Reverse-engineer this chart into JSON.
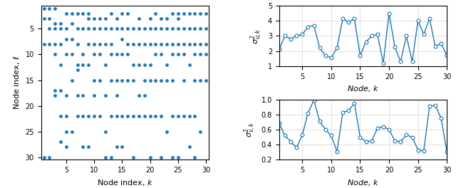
{
  "scatter_x": [
    1,
    1,
    1,
    1,
    2,
    2,
    2,
    2,
    2,
    3,
    3,
    3,
    3,
    3,
    3,
    3,
    4,
    4,
    4,
    4,
    4,
    4,
    4,
    5,
    5,
    5,
    5,
    5,
    5,
    5,
    5,
    6,
    6,
    6,
    6,
    6,
    6,
    7,
    7,
    7,
    7,
    7,
    7,
    7,
    8,
    8,
    8,
    8,
    8,
    8,
    8,
    9,
    9,
    9,
    9,
    9,
    9,
    9,
    10,
    10,
    10,
    10,
    10,
    10,
    10,
    11,
    11,
    11,
    11,
    11,
    11,
    12,
    12,
    12,
    12,
    12,
    12,
    12,
    13,
    13,
    13,
    13,
    13,
    13,
    13,
    14,
    14,
    14,
    14,
    14,
    14,
    14,
    15,
    15,
    15,
    15,
    15,
    15,
    15,
    16,
    16,
    16,
    16,
    16,
    16,
    17,
    17,
    17,
    17,
    17,
    17,
    18,
    18,
    18,
    18,
    18,
    18,
    19,
    19,
    19,
    19,
    19,
    19,
    20,
    20,
    20,
    20,
    20,
    20,
    20,
    21,
    21,
    21,
    21,
    21,
    21,
    22,
    22,
    22,
    22,
    22,
    22,
    22,
    23,
    23,
    23,
    23,
    23,
    23,
    24,
    24,
    24,
    24,
    24,
    24,
    24,
    25,
    25,
    25,
    25,
    25,
    25,
    25,
    26,
    26,
    26,
    26,
    26,
    26,
    27,
    27,
    27,
    27,
    27,
    27,
    28,
    28,
    28,
    28,
    28,
    28,
    28,
    29,
    29,
    29,
    29,
    29,
    29,
    30,
    30,
    30,
    30,
    30
  ],
  "scatter_y": [
    1,
    3,
    8,
    30,
    1,
    3,
    5,
    8,
    30,
    1,
    4,
    5,
    8,
    10,
    17,
    18,
    4,
    5,
    8,
    12,
    17,
    22,
    27,
    2,
    5,
    7,
    10,
    18,
    22,
    25,
    28,
    2,
    4,
    7,
    10,
    15,
    25,
    2,
    5,
    8,
    12,
    13,
    18,
    22,
    2,
    5,
    10,
    12,
    18,
    22,
    28,
    2,
    3,
    5,
    8,
    12,
    22,
    28,
    3,
    5,
    8,
    10,
    15,
    18,
    22,
    3,
    5,
    8,
    10,
    15,
    22,
    3,
    5,
    8,
    12,
    18,
    25,
    30,
    2,
    5,
    8,
    10,
    15,
    22,
    30,
    3,
    5,
    10,
    15,
    18,
    22,
    28,
    2,
    5,
    7,
    10,
    15,
    22,
    28,
    2,
    5,
    8,
    10,
    15,
    22,
    5,
    8,
    12,
    15,
    22,
    30,
    3,
    5,
    8,
    12,
    18,
    22,
    5,
    8,
    12,
    15,
    18,
    22,
    3,
    5,
    8,
    12,
    15,
    22,
    30,
    2,
    5,
    8,
    10,
    15,
    22,
    3,
    5,
    8,
    10,
    15,
    22,
    30,
    3,
    5,
    8,
    12,
    15,
    25,
    2,
    5,
    8,
    10,
    15,
    22,
    30,
    2,
    3,
    5,
    8,
    10,
    22,
    30,
    2,
    5,
    8,
    10,
    15,
    22,
    2,
    5,
    8,
    12,
    22,
    28,
    2,
    5,
    8,
    10,
    15,
    22,
    30,
    2,
    5,
    8,
    10,
    15,
    25,
    2,
    5,
    8,
    10,
    15
  ],
  "line1_x": [
    1,
    2,
    3,
    4,
    5,
    6,
    7,
    8,
    9,
    10,
    11,
    12,
    13,
    14,
    15,
    16,
    17,
    18,
    19,
    20,
    21,
    22,
    23,
    24,
    25,
    26,
    27,
    28,
    29,
    30
  ],
  "line1_y": [
    2.1,
    3.0,
    2.8,
    3.0,
    3.1,
    3.6,
    3.7,
    2.2,
    1.7,
    1.55,
    2.2,
    4.15,
    3.9,
    4.15,
    1.7,
    2.6,
    3.0,
    3.1,
    1.2,
    4.5,
    2.25,
    1.3,
    3.0,
    1.3,
    4.0,
    3.1,
    4.15,
    2.3,
    2.5,
    1.7
  ],
  "line2_x": [
    1,
    2,
    3,
    4,
    5,
    6,
    7,
    8,
    9,
    10,
    11,
    12,
    13,
    14,
    15,
    16,
    17,
    18,
    19,
    20,
    21,
    22,
    23,
    24,
    25,
    26,
    27,
    28,
    29,
    30
  ],
  "line2_y": [
    0.68,
    0.52,
    0.44,
    0.36,
    0.53,
    0.82,
    0.99,
    0.71,
    0.6,
    0.52,
    0.31,
    0.83,
    0.85,
    0.95,
    0.5,
    0.44,
    0.45,
    0.62,
    0.64,
    0.6,
    0.45,
    0.44,
    0.53,
    0.5,
    0.33,
    0.32,
    0.91,
    0.92,
    0.75,
    0.31
  ],
  "line_color": "#1f77b4",
  "marker_color": "#1f77b4",
  "scatter_color": "#1f77b4",
  "ylabel1": "$\\sigma^2_{u,k}$",
  "ylabel2": "$\\sigma^2_{v,k}$",
  "xlabel_scatter": "Node index, $k$",
  "ylabel_scatter": "Node index, $\\ell$",
  "xlabel_line": "Node, $k$",
  "xlim_scatter": [
    0.5,
    30.5
  ],
  "ylim_scatter_min": 0.5,
  "ylim_scatter_max": 30.5,
  "xlim_line": [
    1,
    30
  ],
  "ylim_line1": [
    1,
    5
  ],
  "ylim_line2": [
    0.2,
    1.0
  ],
  "xticks_scatter": [
    5,
    10,
    15,
    20,
    25,
    30
  ],
  "yticks_scatter": [
    5,
    10,
    15,
    20,
    25,
    30
  ],
  "xticks_line": [
    5,
    10,
    15,
    20,
    25,
    30
  ],
  "yticks_line1": [
    1,
    2,
    3,
    4,
    5
  ],
  "yticks_line2": [
    0.2,
    0.4,
    0.6,
    0.8,
    1.0
  ]
}
